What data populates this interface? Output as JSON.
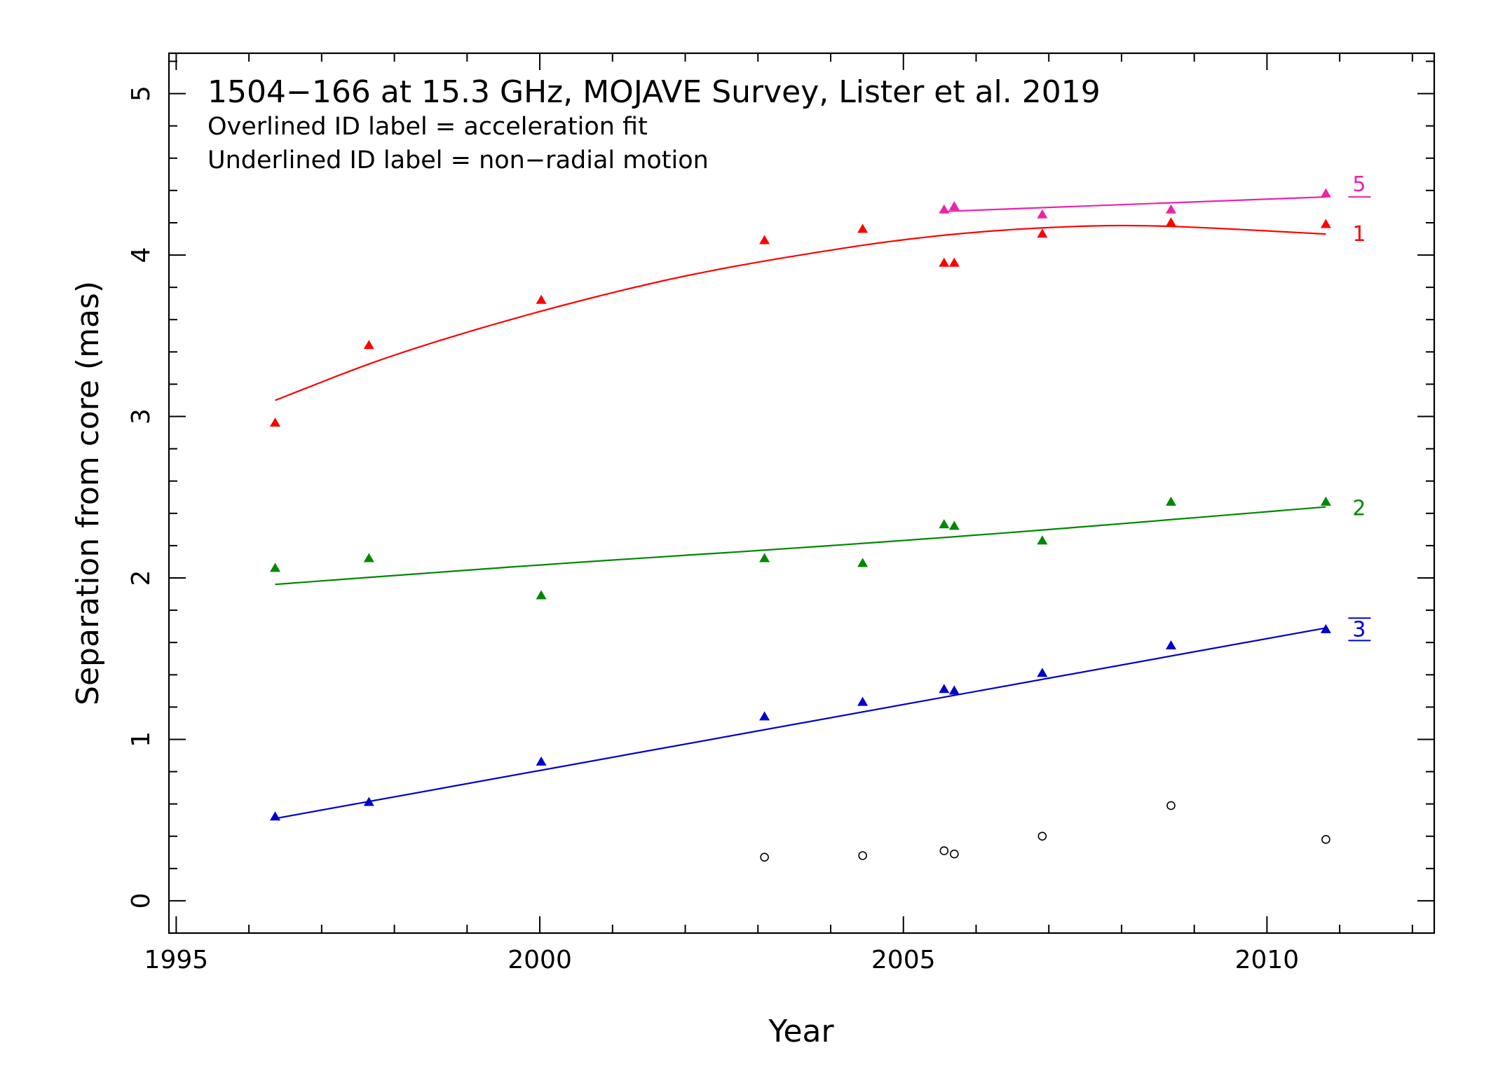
{
  "chart_data": {
    "type": "scatter",
    "title": "1504−166 at 15.3 GHz, MOJAVE Survey, Lister et al. 2019",
    "subtitle_lines": [
      "Overlined ID label = acceleration fit",
      "Underlined ID label = non−radial motion"
    ],
    "xlabel": "Year",
    "ylabel": "Separation from core (mas)",
    "xlim": [
      1994.9,
      2012.3
    ],
    "ylim": [
      -0.2,
      5.25
    ],
    "xticks": [
      1995,
      2000,
      2005,
      2010
    ],
    "yticks": [
      0,
      1,
      2,
      3,
      4,
      5
    ],
    "grid": false,
    "series": [
      {
        "name": "1",
        "label_decoration": "none",
        "color": "#ff0000",
        "marker": "triangle",
        "x": [
          1996.36,
          1997.65,
          2000.02,
          2003.09,
          2004.44,
          2005.56,
          2005.7,
          2006.91,
          2008.68,
          2010.81
        ],
        "y": [
          2.96,
          3.44,
          3.72,
          4.09,
          4.16,
          3.95,
          3.95,
          4.13,
          4.2,
          4.19
        ],
        "fit": {
          "x": [
            1996.36,
            1998.0,
            2000.0,
            2002.0,
            2004.0,
            2005.5,
            2007.0,
            2008.5,
            2010.81
          ],
          "y": [
            3.1,
            3.38,
            3.65,
            3.87,
            4.03,
            4.12,
            4.17,
            4.18,
            4.13
          ]
        }
      },
      {
        "name": "2",
        "label_decoration": "none",
        "color": "#008800",
        "marker": "triangle",
        "x": [
          1996.36,
          1997.65,
          2000.02,
          2003.09,
          2004.44,
          2005.56,
          2005.7,
          2006.91,
          2008.68,
          2010.81
        ],
        "y": [
          2.06,
          2.12,
          1.89,
          2.12,
          2.09,
          2.33,
          2.32,
          2.23,
          2.47,
          2.47
        ],
        "fit": {
          "x": [
            1996.36,
            2000.0,
            2004.0,
            2007.0,
            2010.81
          ],
          "y": [
            1.96,
            2.08,
            2.2,
            2.3,
            2.44
          ]
        }
      },
      {
        "name": "3",
        "label_decoration": "overline",
        "color": "#0000cc",
        "marker": "triangle",
        "x": [
          1996.36,
          1997.65,
          2000.02,
          2003.09,
          2004.44,
          2005.56,
          2005.7,
          2006.91,
          2008.68,
          2010.81
        ],
        "y": [
          0.52,
          0.61,
          0.86,
          1.14,
          1.23,
          1.31,
          1.3,
          1.41,
          1.58,
          1.68
        ],
        "fit": {
          "x": [
            1996.36,
            2010.81
          ],
          "y": [
            0.51,
            1.69
          ]
        }
      },
      {
        "name": "5",
        "label_decoration": "underline",
        "color": "#ee22aa",
        "marker": "triangle",
        "x": [
          2005.56,
          2005.7,
          2006.91,
          2008.68,
          2010.81
        ],
        "y": [
          4.28,
          4.3,
          4.25,
          4.28,
          4.38
        ],
        "fit": {
          "x": [
            2005.56,
            2010.81
          ],
          "y": [
            4.27,
            4.36
          ]
        }
      },
      {
        "name": "",
        "label_decoration": "none",
        "color": "#000000",
        "marker": "open-circle",
        "x": [
          2003.09,
          2004.44,
          2005.56,
          2005.7,
          2006.91,
          2008.68,
          2010.81
        ],
        "y": [
          0.27,
          0.28,
          0.31,
          0.29,
          0.4,
          0.59,
          0.38
        ]
      }
    ]
  }
}
